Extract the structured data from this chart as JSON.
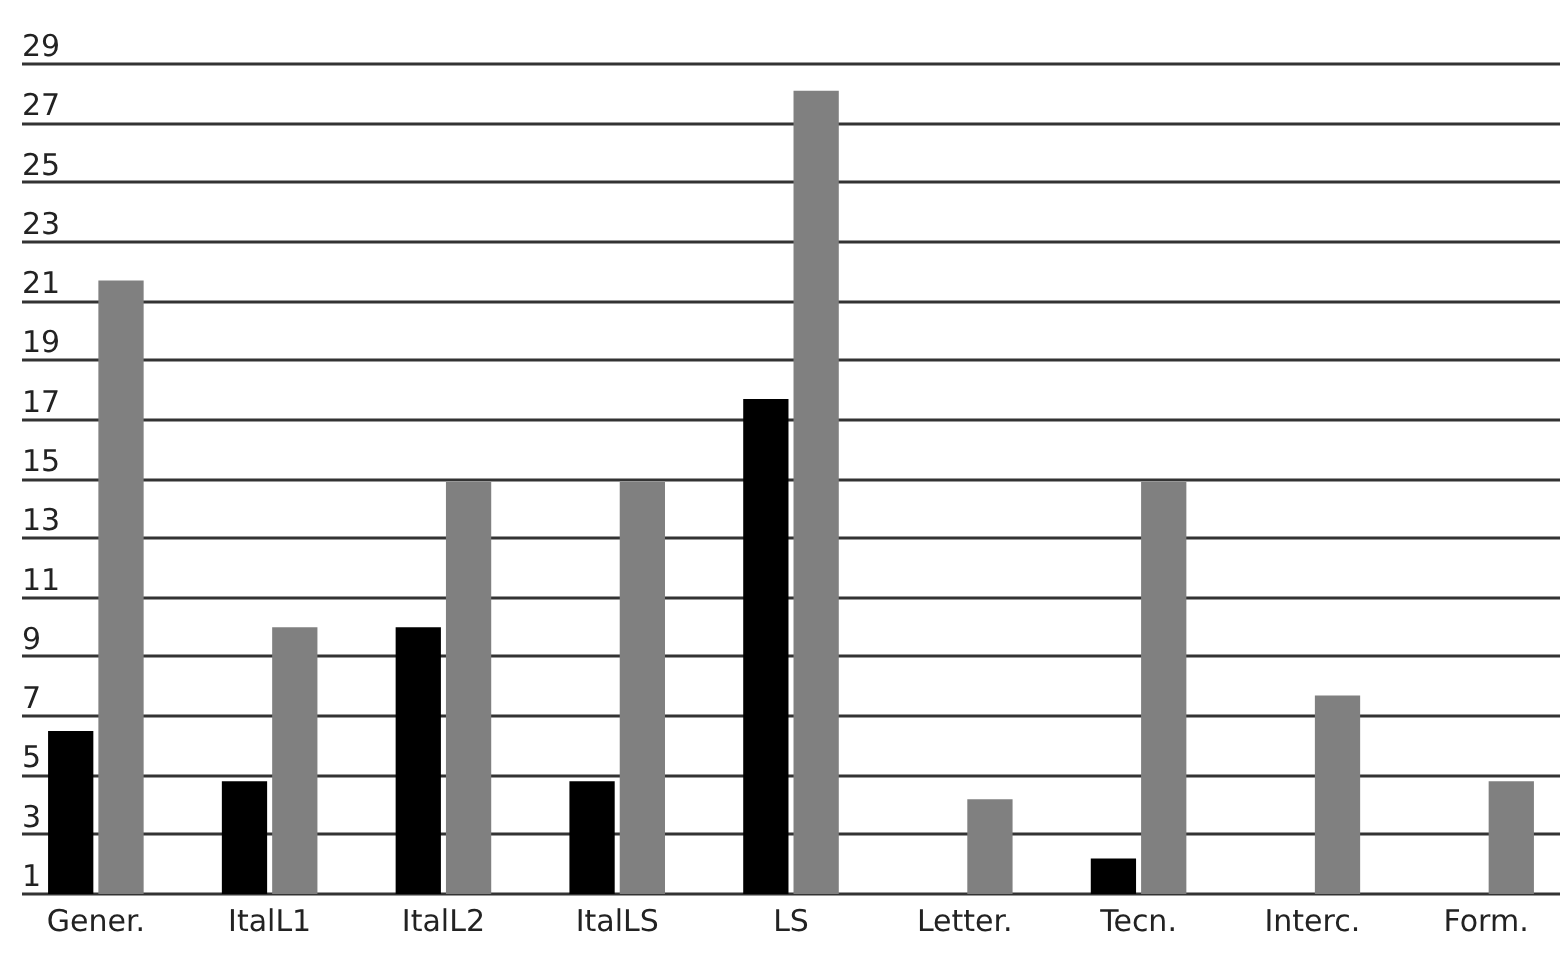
{
  "chart_data": {
    "type": "bar",
    "categories": [
      "Gener.",
      "ItalL1",
      "ItalL2",
      "ItalLS",
      "LS",
      "Letter.",
      "Tecn.",
      "Interc.",
      "Form."
    ],
    "series": [
      {
        "color": "#000000",
        "values": [
          6.5,
          4.8,
          10,
          4.8,
          17.7,
          null,
          2.2,
          null,
          null
        ]
      },
      {
        "color": "#808080",
        "values": [
          21.7,
          10,
          14.9,
          14.9,
          28.1,
          4.2,
          14.9,
          7.7,
          4.8
        ]
      }
    ],
    "ylim": [
      1,
      29
    ],
    "yticks": [
      1,
      3,
      5,
      7,
      9,
      11,
      13,
      15,
      17,
      19,
      21,
      23,
      25,
      27,
      29
    ],
    "grid": "y",
    "legend": false
  }
}
